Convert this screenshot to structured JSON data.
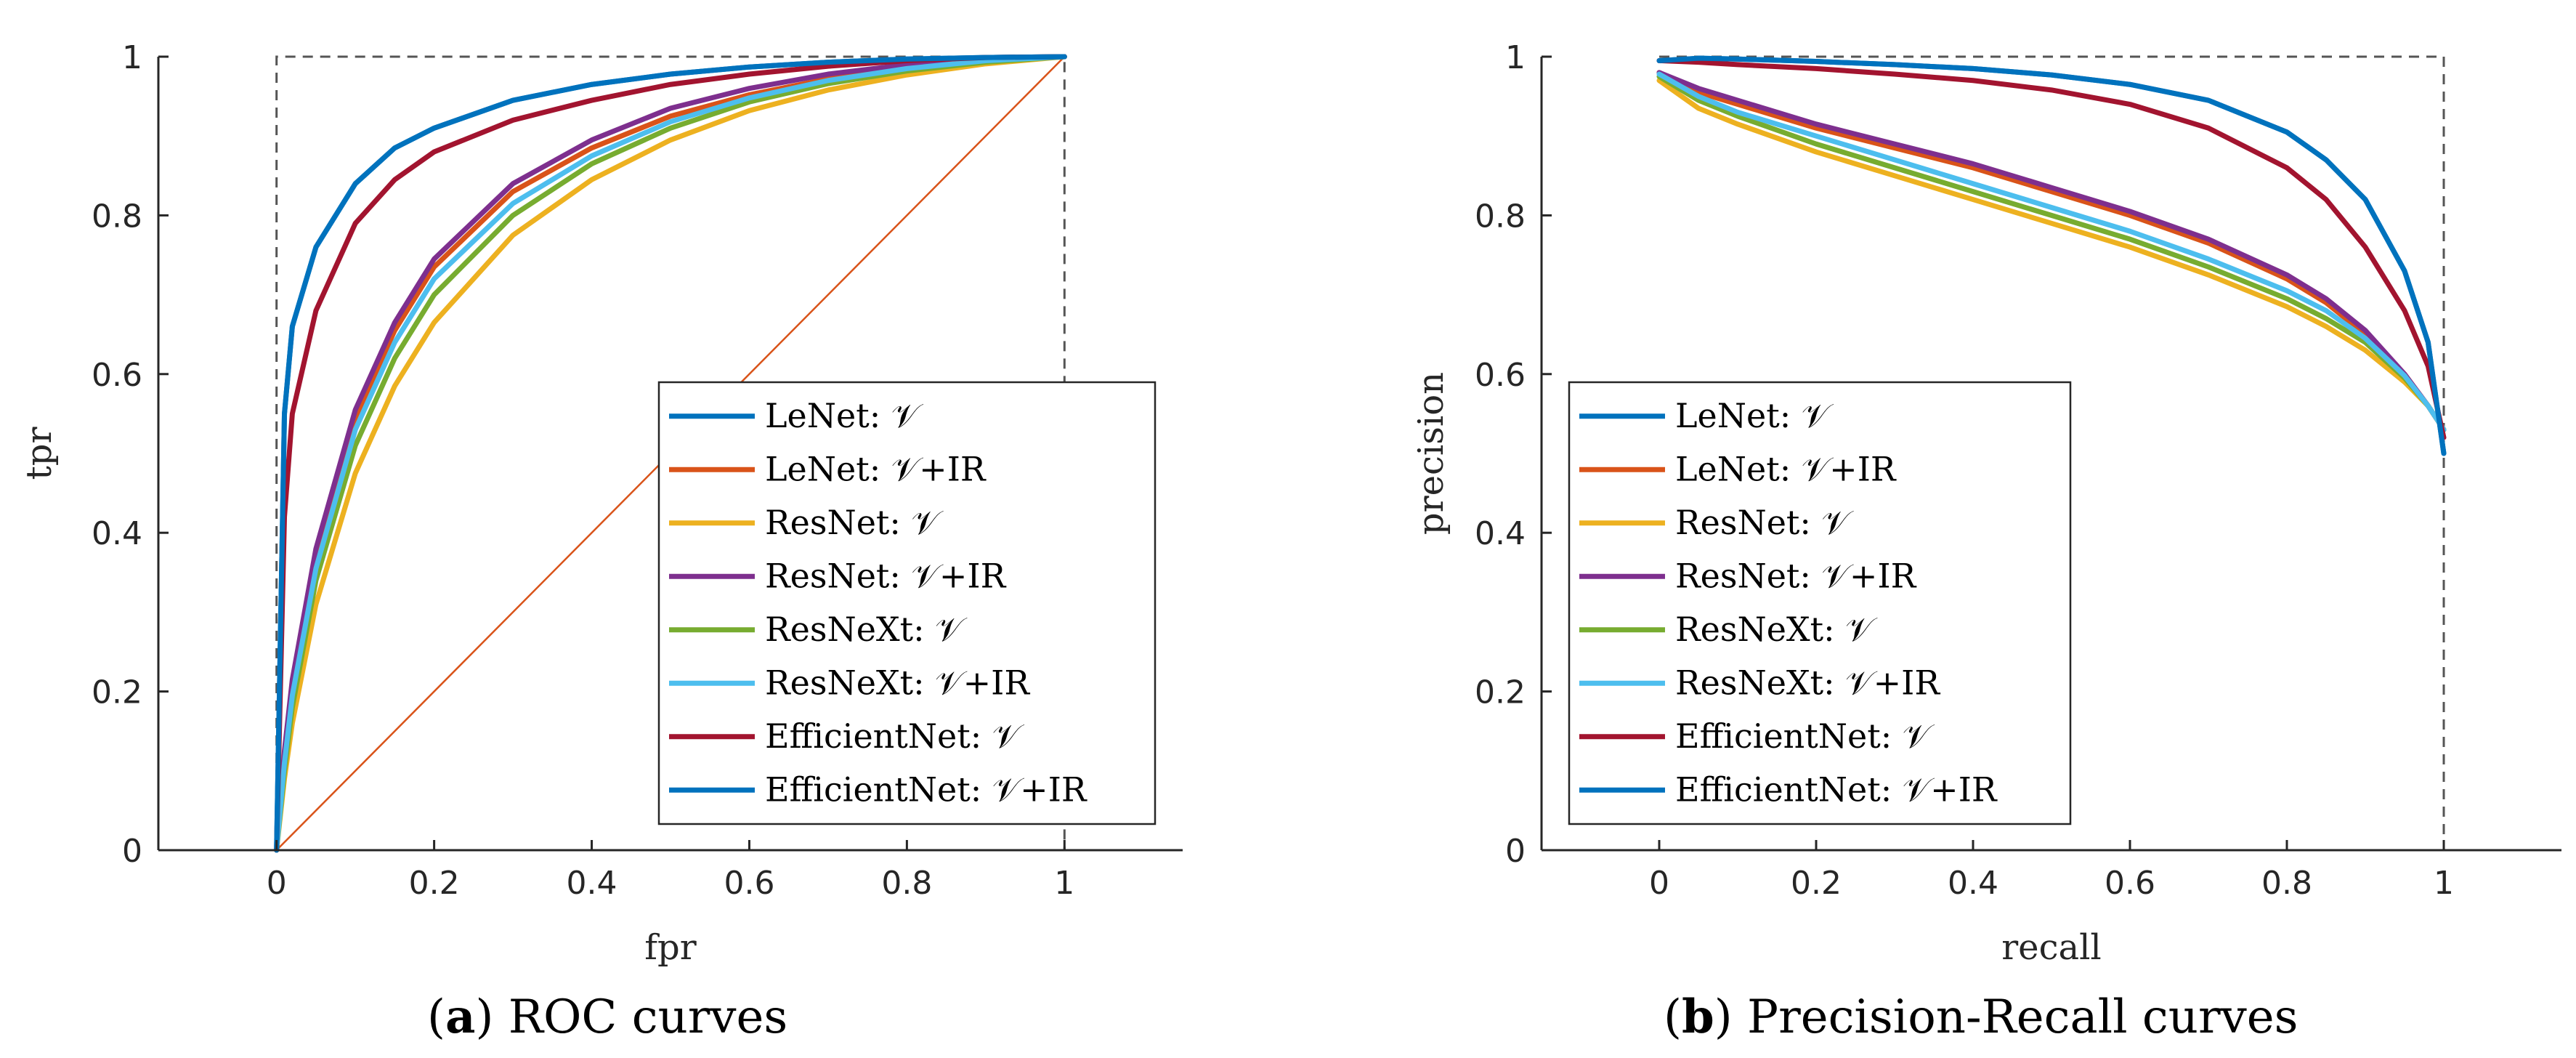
{
  "captions": [
    {
      "letter": "a",
      "text": " ROC curves"
    },
    {
      "letter": "b",
      "text": " Precision-Recall curves"
    }
  ],
  "chart_data": [
    {
      "type": "line",
      "xlabel": "fpr",
      "ylabel": "tpr",
      "xlim": [
        -0.15,
        1.15
      ],
      "ylim": [
        0,
        1
      ],
      "xticks": [
        "0",
        "0.2",
        "0.4",
        "0.6",
        "0.8",
        "1"
      ],
      "yticks": [
        "0",
        "0.2",
        "0.4",
        "0.6",
        "0.8",
        "1"
      ],
      "legend_position": "bottom-right",
      "reference": {
        "name": "chance",
        "color": "#D95319",
        "x": [
          0,
          1
        ],
        "y": [
          0,
          1
        ]
      },
      "ideal": {
        "x": [
          0,
          0,
          1,
          1
        ],
        "y": [
          0,
          1,
          1,
          0
        ]
      },
      "x": [
        0,
        0.01,
        0.02,
        0.05,
        0.1,
        0.15,
        0.2,
        0.3,
        0.4,
        0.5,
        0.6,
        0.7,
        0.8,
        0.9,
        1.0
      ],
      "series": [
        {
          "name": "LeNet: 𝒱",
          "color": "#0072BD",
          "y": [
            0,
            0.55,
            0.66,
            0.76,
            0.84,
            0.885,
            0.91,
            0.945,
            0.965,
            0.978,
            0.987,
            0.993,
            0.997,
            0.999,
            1.0
          ]
        },
        {
          "name": "LeNet: 𝒱+IR",
          "color": "#D95319",
          "y": [
            0,
            0.12,
            0.21,
            0.37,
            0.545,
            0.655,
            0.735,
            0.83,
            0.885,
            0.925,
            0.952,
            0.972,
            0.986,
            0.995,
            1.0
          ]
        },
        {
          "name": "ResNet: 𝒱",
          "color": "#EDB120",
          "y": [
            0,
            0.09,
            0.16,
            0.31,
            0.475,
            0.585,
            0.665,
            0.775,
            0.845,
            0.895,
            0.932,
            0.958,
            0.977,
            0.991,
            1.0
          ]
        },
        {
          "name": "ResNet: 𝒱+IR",
          "color": "#7E2F8E",
          "y": [
            0,
            0.125,
            0.215,
            0.38,
            0.555,
            0.665,
            0.745,
            0.84,
            0.895,
            0.935,
            0.96,
            0.978,
            0.99,
            0.997,
            1.0
          ]
        },
        {
          "name": "ResNeXt: 𝒱",
          "color": "#77AC30",
          "y": [
            0,
            0.1,
            0.18,
            0.34,
            0.51,
            0.62,
            0.7,
            0.8,
            0.865,
            0.91,
            0.943,
            0.966,
            0.982,
            0.993,
            1.0
          ]
        },
        {
          "name": "ResNeXt: 𝒱+IR",
          "color": "#4DBEEE",
          "y": [
            0,
            0.11,
            0.195,
            0.355,
            0.53,
            0.64,
            0.72,
            0.815,
            0.875,
            0.918,
            0.948,
            0.97,
            0.985,
            0.995,
            1.0
          ]
        },
        {
          "name": "EfficientNet: 𝒱",
          "color": "#A2142F",
          "y": [
            0,
            0.42,
            0.55,
            0.68,
            0.79,
            0.845,
            0.88,
            0.92,
            0.945,
            0.965,
            0.978,
            0.988,
            0.995,
            0.999,
            1.0
          ]
        },
        {
          "name": "EfficientNet: 𝒱+IR",
          "color": "#0072BD",
          "y": [
            0,
            0.55,
            0.66,
            0.76,
            0.84,
            0.885,
            0.91,
            0.945,
            0.965,
            0.978,
            0.987,
            0.993,
            0.997,
            0.999,
            1.0
          ]
        }
      ]
    },
    {
      "type": "line",
      "xlabel": "recall",
      "ylabel": "precision",
      "xlim": [
        -0.15,
        1.15
      ],
      "ylim": [
        0,
        1
      ],
      "xticks": [
        "0",
        "0.2",
        "0.4",
        "0.6",
        "0.8",
        "1"
      ],
      "yticks": [
        "0",
        "0.2",
        "0.4",
        "0.6",
        "0.8",
        "1"
      ],
      "legend_position": "bottom-left",
      "ideal": {
        "x": [
          0,
          1,
          1
        ],
        "y": [
          1,
          1,
          0
        ]
      },
      "x": [
        0,
        0.05,
        0.1,
        0.2,
        0.3,
        0.4,
        0.5,
        0.6,
        0.7,
        0.8,
        0.85,
        0.9,
        0.95,
        0.98,
        1.0
      ],
      "series": [
        {
          "name": "LeNet: 𝒱",
          "color": "#0072BD",
          "y": [
            0.995,
            0.998,
            0.997,
            0.994,
            0.99,
            0.985,
            0.977,
            0.965,
            0.945,
            0.905,
            0.87,
            0.82,
            0.73,
            0.64,
            0.5
          ]
        },
        {
          "name": "LeNet: 𝒱+IR",
          "color": "#D95319",
          "y": [
            0.98,
            0.955,
            0.94,
            0.91,
            0.885,
            0.86,
            0.83,
            0.8,
            0.765,
            0.72,
            0.69,
            0.65,
            0.6,
            0.56,
            0.53
          ]
        },
        {
          "name": "ResNet: 𝒱",
          "color": "#EDB120",
          "y": [
            0.97,
            0.935,
            0.915,
            0.88,
            0.85,
            0.82,
            0.79,
            0.76,
            0.725,
            0.685,
            0.66,
            0.63,
            0.59,
            0.56,
            0.53
          ]
        },
        {
          "name": "ResNet: 𝒱+IR",
          "color": "#7E2F8E",
          "y": [
            0.98,
            0.96,
            0.945,
            0.915,
            0.89,
            0.865,
            0.835,
            0.805,
            0.77,
            0.725,
            0.695,
            0.655,
            0.6,
            0.56,
            0.53
          ]
        },
        {
          "name": "ResNeXt: 𝒱",
          "color": "#77AC30",
          "y": [
            0.975,
            0.945,
            0.925,
            0.89,
            0.86,
            0.83,
            0.8,
            0.77,
            0.735,
            0.695,
            0.67,
            0.64,
            0.595,
            0.56,
            0.53
          ]
        },
        {
          "name": "ResNeXt: 𝒱+IR",
          "color": "#4DBEEE",
          "y": [
            0.978,
            0.95,
            0.93,
            0.9,
            0.87,
            0.84,
            0.81,
            0.78,
            0.745,
            0.705,
            0.68,
            0.645,
            0.598,
            0.56,
            0.53
          ]
        },
        {
          "name": "EfficientNet: 𝒱",
          "color": "#A2142F",
          "y": [
            0.995,
            0.993,
            0.99,
            0.985,
            0.978,
            0.97,
            0.958,
            0.94,
            0.91,
            0.86,
            0.82,
            0.76,
            0.68,
            0.61,
            0.52
          ]
        },
        {
          "name": "EfficientNet: 𝒱+IR",
          "color": "#0072BD",
          "y": [
            0.995,
            0.998,
            0.997,
            0.994,
            0.99,
            0.985,
            0.977,
            0.965,
            0.945,
            0.905,
            0.87,
            0.82,
            0.73,
            0.64,
            0.5
          ]
        }
      ]
    }
  ]
}
